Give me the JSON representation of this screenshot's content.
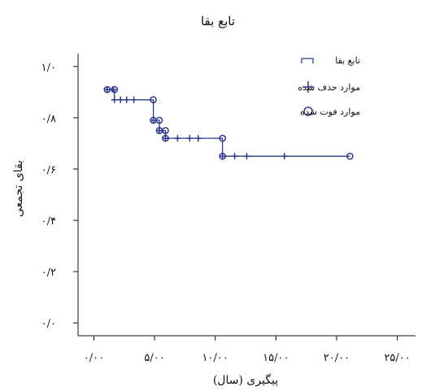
{
  "chart_data": {
    "type": "line",
    "subtype": "kaplan-meier",
    "title": "تابع بقا",
    "xlabel": "پیگیری (سال)",
    "ylabel": "بقای تجمعی",
    "xlim": [
      -1.3,
      26.5
    ],
    "ylim": [
      -0.05,
      1.05
    ],
    "x_ticks": [
      0,
      5,
      10,
      15,
      20,
      25
    ],
    "x_tick_labels": [
      "۰/۰۰",
      "۵/۰۰",
      "۱۰/۰۰",
      "۱۵/۰۰",
      "۲۰/۰۰",
      "۲۵/۰۰"
    ],
    "y_ticks": [
      0,
      0.2,
      0.4,
      0.6,
      0.8,
      1.0
    ],
    "y_tick_labels": [
      "۰/۰",
      "۰/۲",
      "۰/۴",
      "۰/۶",
      "۰/۸",
      "۱/۰"
    ],
    "grid": false,
    "legend_position": "top-right",
    "legend": [
      {
        "label": "تابع بقا",
        "marker": "step"
      },
      {
        "label": "موارد حذف شده",
        "marker": "plus"
      },
      {
        "label": "موارد فوت شده",
        "marker": "circle"
      }
    ],
    "series_color": "#2b3990",
    "survival_steps": [
      {
        "x": 1.1,
        "y": 0.91
      },
      {
        "x": 1.7,
        "y": 0.91
      },
      {
        "x": 1.7,
        "y": 0.87
      },
      {
        "x": 4.9,
        "y": 0.87
      },
      {
        "x": 4.9,
        "y": 0.79
      },
      {
        "x": 5.4,
        "y": 0.79
      },
      {
        "x": 5.4,
        "y": 0.75
      },
      {
        "x": 5.9,
        "y": 0.75
      },
      {
        "x": 5.9,
        "y": 0.72
      },
      {
        "x": 10.6,
        "y": 0.72
      },
      {
        "x": 10.6,
        "y": 0.65
      },
      {
        "x": 21.1,
        "y": 0.65
      }
    ],
    "censored": [
      {
        "x": 1.1,
        "y": 0.91
      },
      {
        "x": 1.6,
        "y": 0.91
      },
      {
        "x": 1.7,
        "y": 0.87
      },
      {
        "x": 2.2,
        "y": 0.87
      },
      {
        "x": 2.7,
        "y": 0.87
      },
      {
        "x": 3.3,
        "y": 0.87
      },
      {
        "x": 4.9,
        "y": 0.79
      },
      {
        "x": 5.4,
        "y": 0.75
      },
      {
        "x": 5.9,
        "y": 0.72
      },
      {
        "x": 6.9,
        "y": 0.72
      },
      {
        "x": 7.9,
        "y": 0.72
      },
      {
        "x": 8.6,
        "y": 0.72
      },
      {
        "x": 10.6,
        "y": 0.65
      },
      {
        "x": 11.6,
        "y": 0.65
      },
      {
        "x": 12.6,
        "y": 0.65
      },
      {
        "x": 15.7,
        "y": 0.65
      }
    ],
    "events": [
      {
        "x": 1.1,
        "y": 0.91
      },
      {
        "x": 1.7,
        "y": 0.91
      },
      {
        "x": 4.9,
        "y": 0.87
      },
      {
        "x": 4.9,
        "y": 0.79
      },
      {
        "x": 5.4,
        "y": 0.79
      },
      {
        "x": 5.4,
        "y": 0.75
      },
      {
        "x": 5.9,
        "y": 0.75
      },
      {
        "x": 5.9,
        "y": 0.72
      },
      {
        "x": 10.6,
        "y": 0.72
      },
      {
        "x": 10.6,
        "y": 0.65
      },
      {
        "x": 21.1,
        "y": 0.65
      }
    ]
  }
}
